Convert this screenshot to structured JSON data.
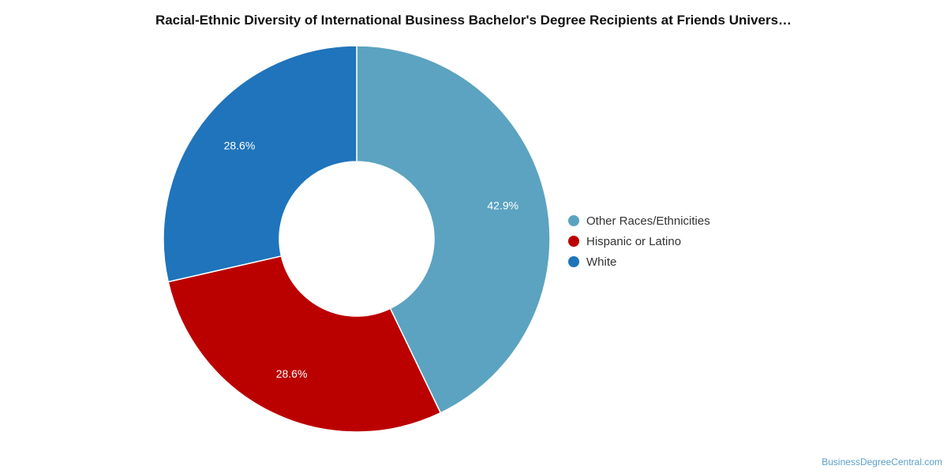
{
  "chart_data": {
    "type": "pie",
    "title": "Racial-Ethnic Diversity of International Business Bachelor's Degree Recipients at Friends Univers…",
    "donut": true,
    "categories": [
      "Other Races/Ethnicities",
      "Hispanic or Latino",
      "White"
    ],
    "values": [
      42.9,
      28.6,
      28.6
    ],
    "value_labels": [
      "42.9%",
      "28.6%",
      "28.6%"
    ],
    "colors": [
      "#5ba3c0",
      "#bb0000",
      "#1f74bb"
    ],
    "legend_position": "right"
  },
  "footer": {
    "source": "BusinessDegreeCentral.com"
  }
}
